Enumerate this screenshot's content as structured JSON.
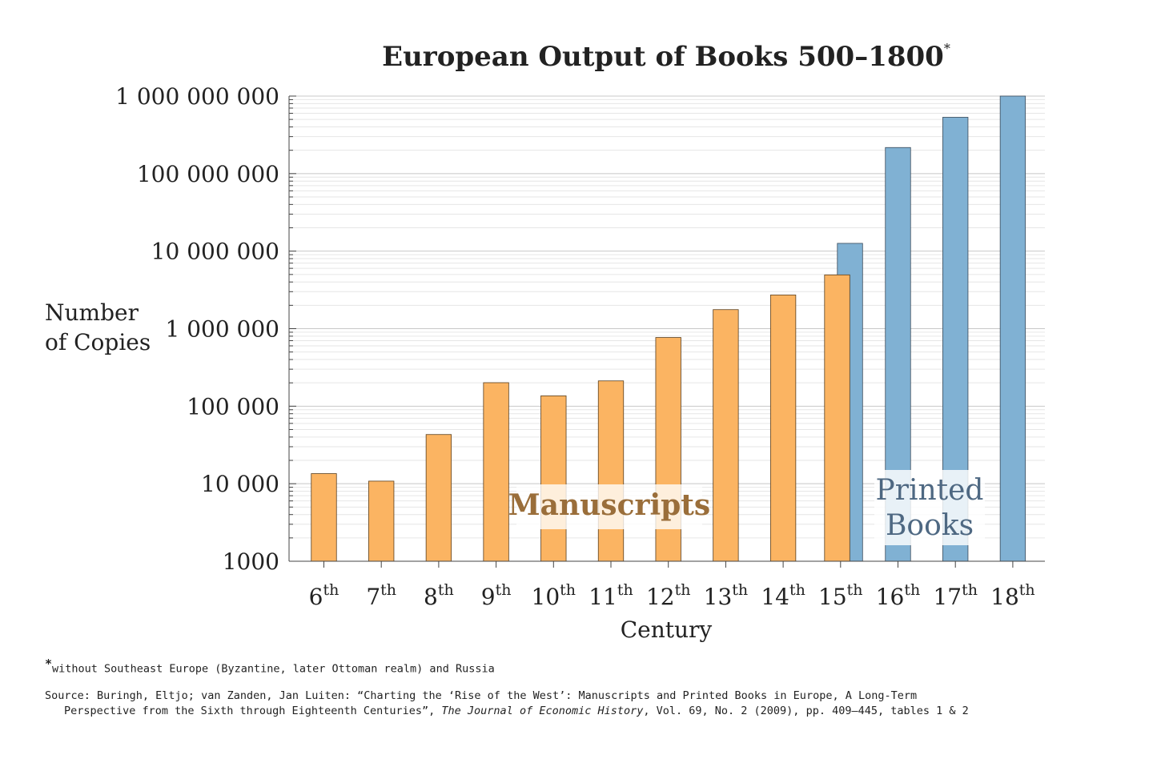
{
  "chart_data": {
    "type": "bar",
    "title": "European Output of Books 500–1800",
    "title_marker": "*",
    "xlabel": "Century",
    "ylabel": [
      "Number",
      "of Copies"
    ],
    "yscale": "log",
    "ylim": [
      1000,
      1000000000
    ],
    "yticks": [
      1000,
      10000,
      100000,
      1000000,
      10000000,
      100000000,
      1000000000
    ],
    "ytick_labels": [
      "1000",
      "10 000",
      "100 000",
      "1 000 000",
      "10 000 000",
      "100 000 000",
      "1 000 000 000"
    ],
    "grid": "horizontal minor gridlines",
    "categories": [
      {
        "num": "6",
        "sup": "th"
      },
      {
        "num": "7",
        "sup": "th"
      },
      {
        "num": "8",
        "sup": "th"
      },
      {
        "num": "9",
        "sup": "th"
      },
      {
        "num": "10",
        "sup": "th"
      },
      {
        "num": "11",
        "sup": "th"
      },
      {
        "num": "12",
        "sup": "th"
      },
      {
        "num": "13",
        "sup": "th"
      },
      {
        "num": "14",
        "sup": "th"
      },
      {
        "num": "15",
        "sup": "th"
      },
      {
        "num": "16",
        "sup": "th"
      },
      {
        "num": "17",
        "sup": "th"
      },
      {
        "num": "18",
        "sup": "th"
      }
    ],
    "series": [
      {
        "name": "Manuscripts",
        "color": "#fbb462",
        "values": [
          13500,
          10800,
          43100,
          201000,
          136000,
          212000,
          769000,
          1760000,
          2720000,
          4940000,
          null,
          null,
          null
        ]
      },
      {
        "name": "Printed Books",
        "color": "#80b1d3",
        "values": [
          null,
          null,
          null,
          null,
          null,
          null,
          null,
          null,
          null,
          12600000,
          217000000,
          533000000,
          1000000000
        ]
      }
    ],
    "annotations": [
      {
        "text": "Manuscripts",
        "color": "#9a6e3a"
      },
      {
        "text": [
          "Printed",
          "Books"
        ],
        "color": "#4e6882"
      }
    ]
  },
  "footnote": {
    "marker": "*",
    "text": "without Southeast Europe (Byzantine, later Ottoman realm) and Russia"
  },
  "source": {
    "line1": "Source: Buringh, Eltjo; van Zanden, Jan Luiten: “Charting the ‘Rise of the West’: Manuscripts and Printed Books in Europe, A Long-Term",
    "line2_pre": "Perspective from the Sixth through Eighteenth Centuries”, ",
    "journal": "The Journal of Economic History",
    "line2_post": ", Vol. 69, No. 2 (2009), pp. 409–445, tables 1 & 2"
  }
}
